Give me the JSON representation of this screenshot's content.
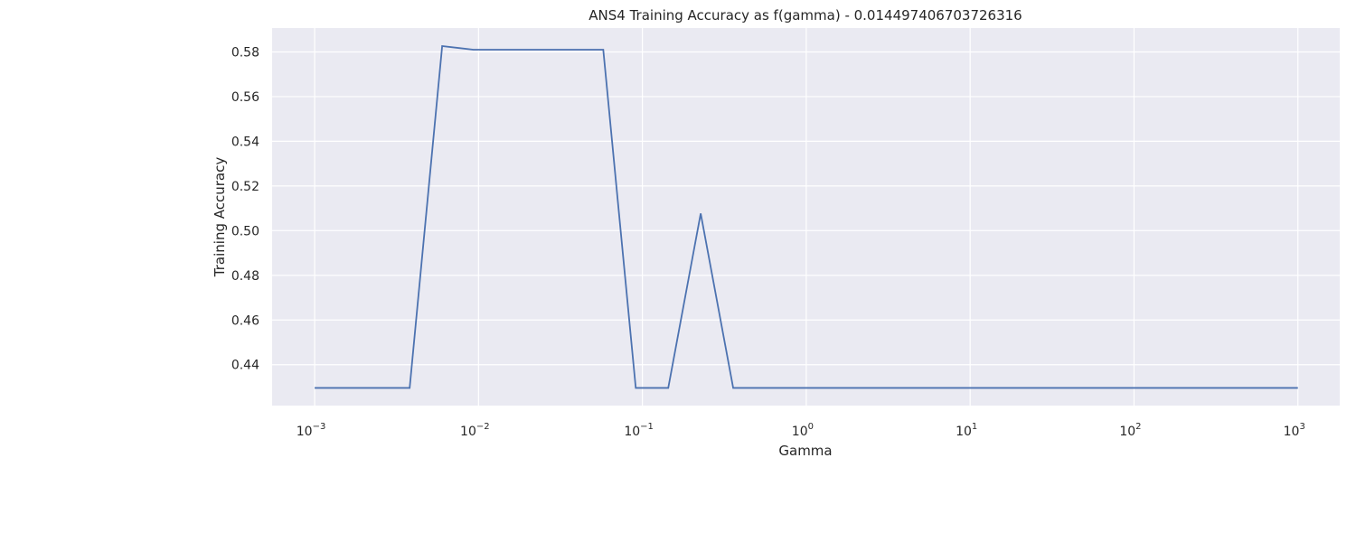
{
  "chart_data": {
    "type": "line",
    "title": "ANS4 Training Accuracy as f(gamma) - 0.014497406703726316",
    "xlabel": "Gamma",
    "ylabel": "Training Accuracy",
    "xscale": "log",
    "xlim": [
      0.00055,
      1800
    ],
    "ylim": [
      0.4217,
      0.5907
    ],
    "grid": true,
    "background_color": "#eaeaf2",
    "grid_color": "#ffffff",
    "line_color": "#4c72b0",
    "x_ticks": [
      {
        "value": 0.001,
        "base": "10",
        "exp": "−3"
      },
      {
        "value": 0.01,
        "base": "10",
        "exp": "−2"
      },
      {
        "value": 0.1,
        "base": "10",
        "exp": "−1"
      },
      {
        "value": 1,
        "base": "10",
        "exp": "0"
      },
      {
        "value": 10,
        "base": "10",
        "exp": "1"
      },
      {
        "value": 100,
        "base": "10",
        "exp": "2"
      },
      {
        "value": 1000,
        "base": "10",
        "exp": "3"
      }
    ],
    "y_ticks": [
      {
        "value": 0.44,
        "label": "0.44"
      },
      {
        "value": 0.46,
        "label": "0.46"
      },
      {
        "value": 0.48,
        "label": "0.48"
      },
      {
        "value": 0.5,
        "label": "0.50"
      },
      {
        "value": 0.52,
        "label": "0.52"
      },
      {
        "value": 0.54,
        "label": "0.54"
      },
      {
        "value": 0.56,
        "label": "0.56"
      },
      {
        "value": 0.58,
        "label": "0.58"
      }
    ],
    "series": [
      {
        "color": "#4c72b0",
        "x": [
          0.001,
          0.0015,
          0.0024,
          0.0038,
          0.006,
          0.0093,
          0.0147,
          0.0232,
          0.0366,
          0.0577,
          0.0911,
          0.1438,
          0.2269,
          0.3581,
          0.5651,
          0.8918,
          1.407,
          2.221,
          3.505,
          5.531,
          8.729,
          13.77,
          21.74,
          34.3,
          54.13,
          85.42,
          134.8,
          212.7,
          335.7,
          529.7,
          1000
        ],
        "y": [
          0.4296,
          0.4296,
          0.4296,
          0.4296,
          0.5826,
          0.581,
          0.581,
          0.581,
          0.581,
          0.581,
          0.4296,
          0.4296,
          0.5077,
          0.4296,
          0.4296,
          0.4296,
          0.4296,
          0.4296,
          0.4296,
          0.4296,
          0.4296,
          0.4296,
          0.4296,
          0.4296,
          0.4296,
          0.4296,
          0.4296,
          0.4296,
          0.4296,
          0.4296,
          0.4296
        ]
      }
    ]
  }
}
